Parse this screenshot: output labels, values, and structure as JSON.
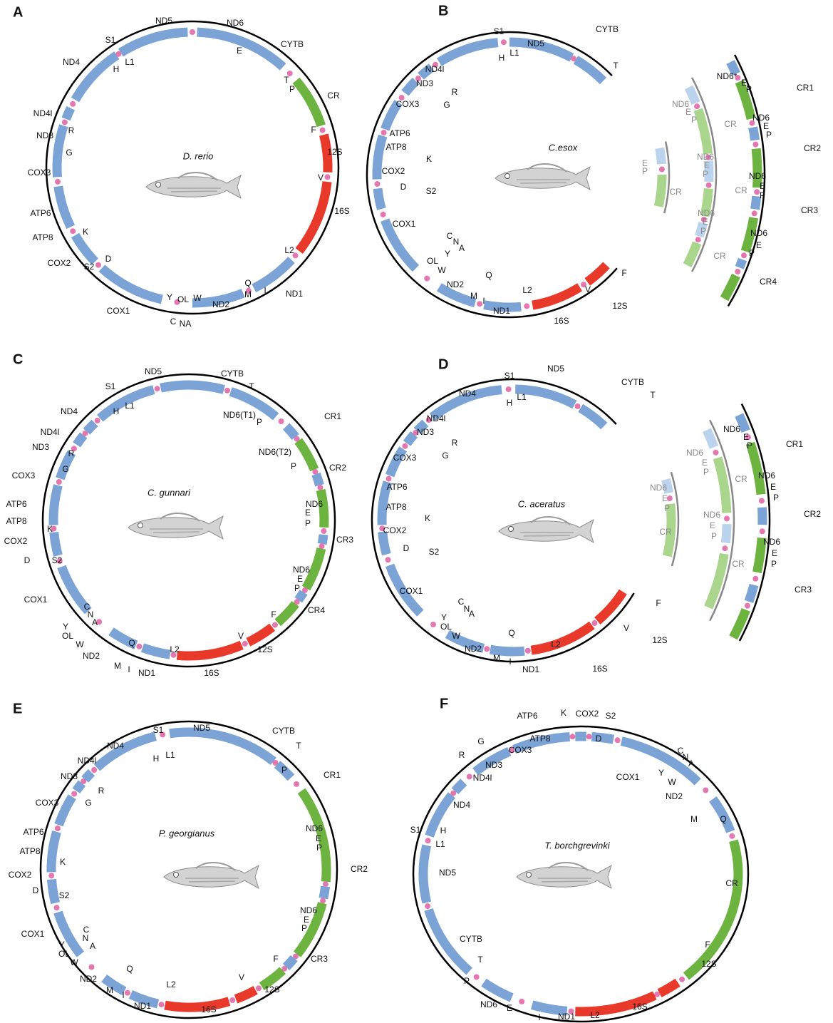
{
  "panels": [
    {
      "letter": "A",
      "species": "D. rerio",
      "labels": [
        "ND5",
        "ND6",
        "CYTB",
        "S1",
        "ND4",
        "H",
        "L1",
        "E",
        "T",
        "P",
        "CR",
        "F",
        "12S",
        "V",
        "16S",
        "L2",
        "Q",
        "ND1",
        "I",
        "M",
        "ND2",
        "W",
        "OL",
        "Y",
        "C",
        "NA",
        "COX1",
        "S2",
        "D",
        "COX2",
        "K",
        "ATP8",
        "ATP6",
        "COX3",
        "G",
        "ND3",
        "R",
        "ND4l"
      ]
    },
    {
      "letter": "B",
      "species": "C.esox",
      "labels": [
        "ND5",
        "CYTB",
        "S1",
        "H",
        "L1",
        "T",
        "ND4l",
        "ND3",
        "R",
        "COX3",
        "G",
        "ATP6",
        "ATP8",
        "K",
        "COX2",
        "D",
        "S2",
        "COX1",
        "C",
        "N",
        "A",
        "Y",
        "OL",
        "W",
        "Q",
        "ND2",
        "M",
        "I",
        "L2",
        "V",
        "F",
        "ND1",
        "16S",
        "12S",
        "E",
        "P",
        "CR",
        "ND6",
        "E",
        "P",
        "CR",
        "ND6",
        "E",
        "P",
        "CR",
        "ND6",
        "E",
        "P",
        "CR",
        "ND6*",
        "E",
        "P",
        "CR1",
        "ND6",
        "E",
        "P",
        "CR2",
        "ND6",
        "E",
        "P",
        "CR3",
        "ND6",
        "E",
        "P",
        "CR4"
      ]
    },
    {
      "letter": "C",
      "species": "C. gunnari",
      "labels": [
        "ND5",
        "CYTB",
        "T",
        "S1",
        "H",
        "L1",
        "ND4",
        "ND4l",
        "ND3",
        "R",
        "G",
        "COX3",
        "ATP6",
        "ATP8",
        "K",
        "COX2",
        "D",
        "S2",
        "COX1",
        "C",
        "N",
        "A",
        "Y",
        "OL",
        "W",
        "Q",
        "ND2",
        "M",
        "I",
        "L2",
        "ND1",
        "16S",
        "V",
        "12S",
        "F",
        "CR4",
        "ND6",
        "E",
        "P",
        "CR3",
        "ND6",
        "E",
        "P",
        "CR2",
        "ND6(T2)",
        "P",
        "CR1",
        "ND6(T1)",
        "P"
      ]
    },
    {
      "letter": "D",
      "species": "C. aceratus",
      "labels": [
        "ND5",
        "CYTB",
        "S1",
        "H",
        "L1",
        "T",
        "ND4",
        "ND4l",
        "ND3",
        "R",
        "G",
        "COX3",
        "ATP6",
        "ATP8",
        "K",
        "COX2",
        "D",
        "S2",
        "COX1",
        "C",
        "N",
        "A",
        "Y",
        "OL",
        "W",
        "Q",
        "ND2",
        "M",
        "I",
        "L2",
        "ND1",
        "16S",
        "V",
        "12S",
        "F",
        "ND6",
        "E",
        "P",
        "CR",
        "ND6",
        "E",
        "P",
        "CR",
        "ND6",
        "E",
        "P",
        "CR",
        "ND6",
        "E",
        "P",
        "CR1",
        "ND6",
        "E",
        "P",
        "CR2",
        "ND6",
        "E",
        "P",
        "CR3"
      ]
    },
    {
      "letter": "E",
      "species": "P. georgianus",
      "labels": [
        "ND5",
        "CYTB",
        "S1",
        "H",
        "L1",
        "T",
        "P",
        "CR1",
        "ND4",
        "ND4l",
        "ND3",
        "R",
        "G",
        "COX3",
        "ATP6",
        "ATP8",
        "K",
        "COX2",
        "D",
        "S2",
        "COX1",
        "C",
        "N",
        "A",
        "Y",
        "OL",
        "W",
        "Q",
        "ND2",
        "M",
        "I",
        "L2",
        "ND1",
        "16S",
        "V",
        "12S",
        "F",
        "CR3",
        "ND6",
        "E",
        "P",
        "CR2",
        "ND6",
        "E",
        "P"
      ]
    },
    {
      "letter": "F",
      "species": "T. borchgrevinki",
      "labels": [
        "ATP6",
        "K",
        "COX2",
        "S2",
        "ATP8",
        "D",
        "G",
        "COX3",
        "R",
        "ND3",
        "ND4l",
        "COX1",
        "C",
        "N",
        "A",
        "Y",
        "W",
        "ND2",
        "M",
        "Q",
        "ND4",
        "S1",
        "H",
        "L1",
        "ND5",
        "CR",
        "CYTB",
        "T",
        "P",
        "F",
        "12S",
        "ND6",
        "E",
        "I",
        "ND1",
        "L2",
        "16S"
      ]
    }
  ]
}
